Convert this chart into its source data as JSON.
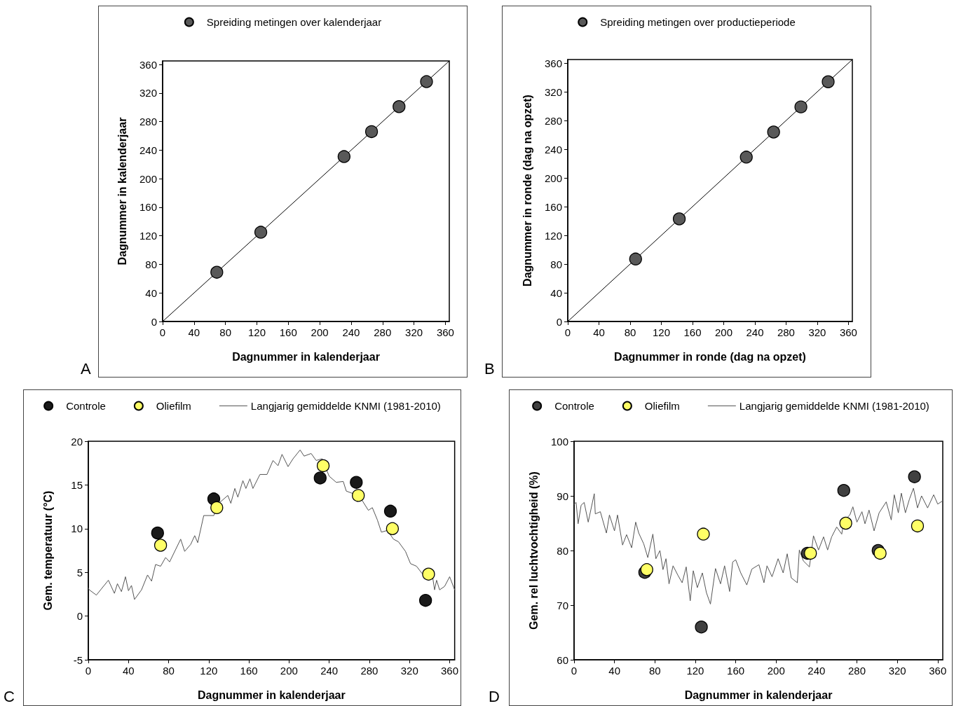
{
  "chart_data": [
    {
      "type": "scatter",
      "xlabel": "Dagnummer in kalenderjaar",
      "ylabel": "Dagnummer in kalenderjaar",
      "annotations": [
        "A"
      ],
      "legend": "top",
      "grid": false,
      "xlim": [
        0,
        365
      ],
      "ylim": [
        0,
        365
      ],
      "xticks": [
        0,
        40,
        80,
        120,
        160,
        200,
        240,
        280,
        320,
        360
      ],
      "yticks": [
        0,
        40,
        80,
        120,
        160,
        200,
        240,
        280,
        320,
        360
      ],
      "series": [
        {
          "type": "line",
          "color": "#000000",
          "marker": "none",
          "line_style": "solid",
          "x": [
            0,
            365
          ],
          "values": [
            0,
            365
          ]
        },
        {
          "name": "Spreiding metingen over kalenderjaar",
          "color": "#595959",
          "marker": "circle",
          "x": [
            69,
            125,
            231,
            266,
            301,
            336
          ],
          "values": [
            69,
            125,
            231,
            266,
            301,
            336
          ]
        }
      ]
    },
    {
      "type": "scatter",
      "xlabel": "Dagnummer in ronde (dag na opzet)",
      "ylabel": "Dagnummer in ronde (dag na opzet)",
      "annotations": [
        "B"
      ],
      "legend": "top",
      "grid": false,
      "xlim": [
        0,
        365
      ],
      "ylim": [
        0,
        365
      ],
      "xticks": [
        0,
        40,
        80,
        120,
        160,
        200,
        240,
        280,
        320,
        360
      ],
      "yticks": [
        0,
        40,
        80,
        120,
        160,
        200,
        240,
        280,
        320,
        360
      ],
      "series": [
        {
          "type": "line",
          "color": "#000000",
          "marker": "none",
          "line_style": "solid",
          "x": [
            0,
            365
          ],
          "values": [
            0,
            365
          ]
        },
        {
          "name": "Spreiding metingen over productieperiode",
          "color": "#595959",
          "marker": "circle",
          "x": [
            87,
            143,
            229,
            264,
            299,
            334
          ],
          "values": [
            87,
            143,
            229,
            264,
            299,
            334
          ]
        }
      ]
    },
    {
      "type": "scatter",
      "xlabel": "Dagnummer in kalenderjaar",
      "ylabel": "Gem. temperatuur (°C)",
      "annotations": [
        "C"
      ],
      "legend": "top",
      "grid": false,
      "xlim": [
        0,
        365
      ],
      "ylim": [
        -5,
        20
      ],
      "xticks": [
        0,
        40,
        80,
        120,
        160,
        200,
        240,
        280,
        320,
        360
      ],
      "yticks": [
        -5,
        0,
        5,
        10,
        15,
        20
      ],
      "series": [
        {
          "name": "Controle",
          "color": "#1a1a1a",
          "marker": "circle",
          "x": [
            69,
            125,
            231,
            267,
            301,
            336
          ],
          "values": [
            9.5,
            13.4,
            15.8,
            15.3,
            12.0,
            1.8
          ]
        },
        {
          "name": "Oliefilm",
          "color": "#ffff66",
          "marker": "circle",
          "x": [
            72,
            128,
            234,
            269,
            303,
            339
          ],
          "values": [
            8.1,
            12.4,
            17.2,
            13.8,
            10.0,
            4.8
          ]
        },
        {
          "type": "line",
          "name": "Langjarig gemiddelde KNMI (1981-2010)",
          "color": "#555555",
          "marker": "none",
          "line_style": "solid",
          "x": [
            0,
            1,
            8,
            20,
            26,
            29,
            33,
            37,
            40,
            43,
            46,
            53,
            59,
            63,
            67,
            72,
            77,
            81,
            92,
            96,
            102,
            106,
            109,
            115,
            125,
            130,
            139,
            142,
            146,
            149,
            154,
            157,
            161,
            164,
            171,
            178,
            184,
            189,
            193,
            199,
            204,
            211,
            215,
            222,
            227,
            233,
            236,
            240,
            247,
            254,
            257,
            264,
            273,
            279,
            283,
            288,
            292,
            298,
            304,
            309,
            316,
            321,
            327,
            331,
            336,
            343,
            345,
            347,
            350,
            355,
            360,
            365
          ],
          "values": [
            3.2,
            3.0,
            2.4,
            4.1,
            2.6,
            3.7,
            2.8,
            4.5,
            2.9,
            3.5,
            1.9,
            3.0,
            4.7,
            4.0,
            5.9,
            5.7,
            6.7,
            6.2,
            8.8,
            7.4,
            8.2,
            9.2,
            8.4,
            11.5,
            11.5,
            12.9,
            13.8,
            12.9,
            14.6,
            13.6,
            15.5,
            14.6,
            15.7,
            14.6,
            16.2,
            16.2,
            17.8,
            17.2,
            18.5,
            17.1,
            18.0,
            19.0,
            18.3,
            18.6,
            17.8,
            18.0,
            17.1,
            16.0,
            15.3,
            15.4,
            14.3,
            14.0,
            13.2,
            12.1,
            12.4,
            11.0,
            9.6,
            9.8,
            8.8,
            8.5,
            7.4,
            6.0,
            5.7,
            5.1,
            4.4,
            4.5,
            3.0,
            4.1,
            3.0,
            3.4,
            4.5,
            3.0
          ]
        }
      ]
    },
    {
      "type": "scatter",
      "xlabel": "Dagnummer in kalenderjaar",
      "ylabel": "Gem. rel luchtvochtigheid (%)",
      "annotations": [
        "D"
      ],
      "legend": "top",
      "grid": false,
      "xlim": [
        0,
        365
      ],
      "ylim": [
        60,
        100
      ],
      "xticks": [
        0,
        40,
        80,
        120,
        160,
        200,
        240,
        280,
        320,
        360
      ],
      "yticks": [
        60,
        70,
        80,
        90,
        100
      ],
      "series": [
        {
          "name": "Controle",
          "color": "#404040",
          "marker": "circle",
          "x": [
            70,
            126,
            231,
            267,
            301,
            337
          ],
          "values": [
            76,
            66,
            79.5,
            91,
            80,
            93.5
          ]
        },
        {
          "name": "Oliefilm",
          "color": "#ffff66",
          "marker": "circle",
          "x": [
            72,
            128,
            234,
            269,
            303,
            340
          ],
          "values": [
            76.5,
            83,
            79.5,
            85,
            79.5,
            84.5
          ]
        },
        {
          "type": "line",
          "name": "Langjarig gemiddelde KNMI (1981-2010)",
          "color": "#555555",
          "marker": "none",
          "line_style": "solid",
          "x": [
            0,
            2,
            4,
            7,
            10,
            14,
            20,
            21,
            26,
            32,
            35,
            40,
            43,
            48,
            52,
            57,
            61,
            64,
            69,
            73,
            78,
            81,
            85,
            88,
            91,
            94,
            98,
            103,
            107,
            111,
            115,
            118,
            122,
            127,
            131,
            135,
            140,
            145,
            149,
            154,
            157,
            160,
            165,
            171,
            176,
            183,
            188,
            191,
            196,
            202,
            207,
            211,
            215,
            221,
            223,
            227,
            233,
            237,
            242,
            247,
            251,
            255,
            260,
            265,
            267,
            273,
            276,
            280,
            285,
            288,
            292,
            297,
            302,
            309,
            314,
            317,
            321,
            324,
            328,
            332,
            336,
            340,
            344,
            350,
            356,
            360,
            365
          ],
          "values": [
            88.5,
            88.8,
            84.9,
            88.3,
            88.8,
            85.2,
            90.4,
            86.7,
            87.1,
            83.2,
            86.5,
            83.6,
            86.5,
            81.0,
            82.9,
            80.5,
            85.2,
            83.2,
            81.2,
            78.7,
            83.0,
            78.5,
            80.0,
            76.5,
            78.5,
            73.9,
            77.2,
            75.4,
            74.1,
            77.0,
            70.8,
            76.3,
            73.2,
            75.9,
            72.3,
            70.2,
            76.7,
            73.9,
            77.2,
            72.5,
            77.9,
            78.3,
            75.9,
            73.7,
            76.6,
            77.4,
            74.1,
            77.2,
            75.2,
            78.5,
            75.9,
            79.4,
            75.0,
            74.1,
            80.1,
            78.1,
            77.0,
            82.7,
            80.1,
            82.5,
            80.1,
            82.5,
            84.3,
            83.0,
            85.4,
            86.5,
            88.0,
            85.2,
            87.1,
            84.9,
            87.4,
            83.6,
            86.9,
            88.9,
            85.6,
            90.2,
            86.9,
            90.5,
            86.9,
            89.4,
            91.4,
            87.8,
            90.0,
            87.8,
            90.2,
            88.5,
            89.1
          ]
        }
      ]
    }
  ]
}
